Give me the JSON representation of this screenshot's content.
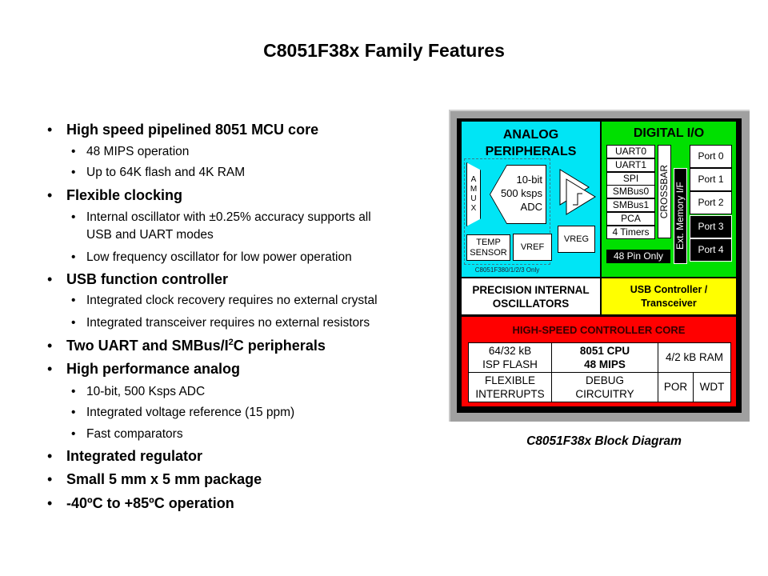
{
  "title": "C8051F38x Family Features",
  "bullets": [
    {
      "level": 1,
      "text": "High speed pipelined 8051 MCU core"
    },
    {
      "level": 2,
      "text": "48 MIPS operation"
    },
    {
      "level": 2,
      "text": "Up to 64K flash and 4K RAM"
    },
    {
      "level": 1,
      "text": "Flexible clocking"
    },
    {
      "level": 2,
      "text": "Internal oscillator with ±0.25% accuracy supports all",
      "text2": "USB and UART modes"
    },
    {
      "level": 2,
      "text": "Low frequency oscillator for low power operation"
    },
    {
      "level": 1,
      "text": "USB function controller"
    },
    {
      "level": 2,
      "text": "Integrated clock recovery requires no external crystal"
    },
    {
      "level": 2,
      "text": "Integrated transceiver requires no external resistors"
    },
    {
      "level": 1,
      "text": "Two UART and SMBus/I",
      "sup": "2",
      "after": "C peripherals"
    },
    {
      "level": 1,
      "text": "High performance analog"
    },
    {
      "level": 2,
      "text": "10-bit, 500 Ksps ADC"
    },
    {
      "level": 2,
      "text": "Integrated voltage reference (15 ppm)"
    },
    {
      "level": 2,
      "text": "Fast comparators"
    },
    {
      "level": 1,
      "text": "Integrated regulator"
    },
    {
      "level": 1,
      "text": "Small 5 mm x 5 mm package"
    },
    {
      "level": 1,
      "text": "-40ºC to +85ºC operation"
    }
  ],
  "diagram": {
    "analog": {
      "title1": "ANALOG",
      "title2": "PERIPHERALS",
      "amux": [
        "A",
        "M",
        "U",
        "X"
      ],
      "adc": [
        "10-bit",
        "500 ksps",
        "ADC"
      ],
      "temp": [
        "TEMP",
        "SENSOR"
      ],
      "vref": "VREF",
      "vreg": "VREG",
      "note": "C8051F380/1/2/3 Only"
    },
    "digital": {
      "title": "DIGITAL I/O",
      "peripherals": [
        "UART0",
        "UART1",
        "SPI",
        "SMBus0",
        "SMBus1",
        "PCA",
        "4 Timers"
      ],
      "crossbar": "CROSSBAR",
      "ext_mem": "Ext. Memory I/F",
      "ports": [
        "Port 0",
        "Port 1",
        "Port 2",
        "Port 3",
        "Port 4"
      ],
      "pin_note": "48 Pin Only"
    },
    "osc": [
      "PRECISION INTERNAL",
      "OSCILLATORS"
    ],
    "usb": [
      "USB Controller /",
      "Transceiver"
    ],
    "core": {
      "title": "HIGH-SPEED CONTROLLER CORE",
      "flash": [
        "64/32 kB",
        "ISP FLASH"
      ],
      "cpu": [
        "8051 CPU",
        "48 MIPS"
      ],
      "ram": "4/2 kB RAM",
      "interrupts": [
        "FLEXIBLE",
        "INTERRUPTS"
      ],
      "debug": [
        "DEBUG",
        "CIRCUITRY"
      ],
      "por": "POR",
      "wdt": "WDT"
    },
    "colors": {
      "analog": "#00e5f5",
      "digital": "#00e000",
      "usb": "#ffff00",
      "core": "#ff0000",
      "frame": "#a0a0a0"
    }
  },
  "caption": "C8051F38x Block Diagram"
}
